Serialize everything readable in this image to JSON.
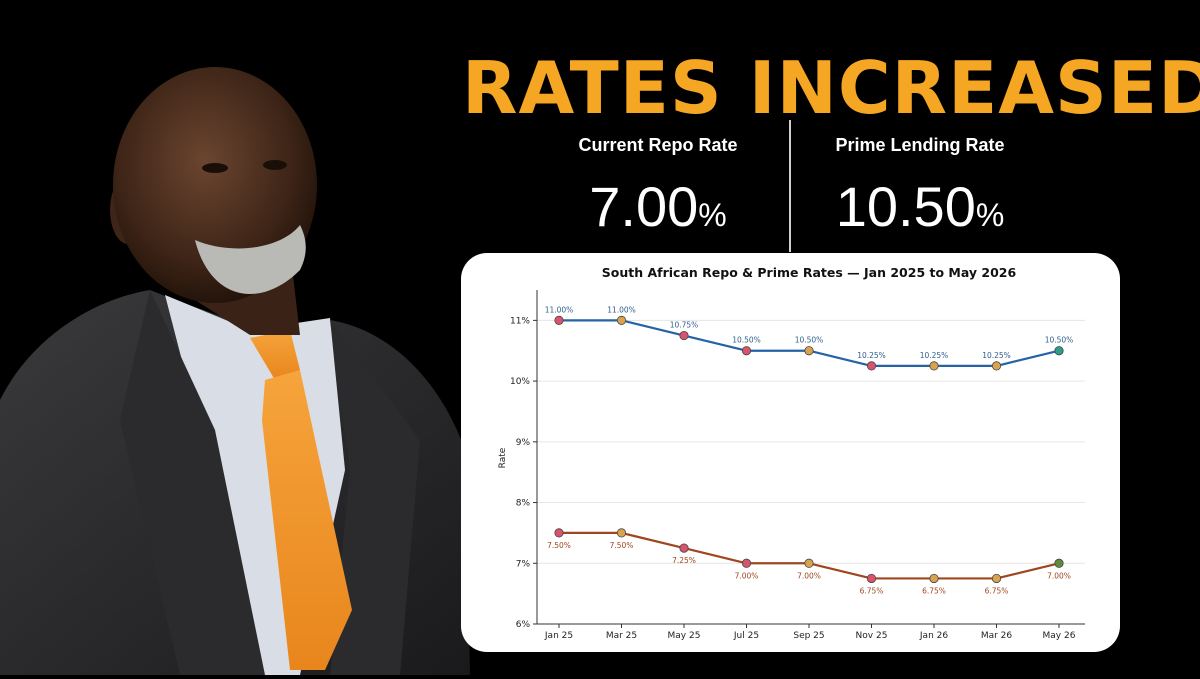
{
  "headline": "RATES INCREASED",
  "stats": {
    "repo": {
      "label": "Current Repo Rate",
      "value": "7.00",
      "unit": "%"
    },
    "prime": {
      "label": "Prime Lending Rate",
      "value": "10.50",
      "unit": "%"
    }
  },
  "colors": {
    "headline": "#F5A623",
    "prime_line": "#2563A6",
    "repo_line": "#A0461E",
    "prime_label": "#2E5E8C",
    "repo_label": "#A0461E"
  },
  "chart_data": {
    "type": "line",
    "title": "South African Repo & Prime Rates  —  Jan 2025 to May 2026",
    "xlabel": "",
    "ylabel": "Rate",
    "ylim": [
      6,
      11.5
    ],
    "yticks": [
      6,
      7,
      8,
      9,
      10,
      11
    ],
    "ytick_labels": [
      "6%",
      "7%",
      "8%",
      "9%",
      "10%",
      "11%"
    ],
    "grid": true,
    "categories": [
      "Jan 25",
      "Mar 25",
      "May 25",
      "Jul 25",
      "Sep 25",
      "Nov 25",
      "Jan 26",
      "Mar 26",
      "May 26"
    ],
    "series": [
      {
        "values": [
          11.0,
          11.0,
          10.75,
          10.5,
          10.5,
          10.25,
          10.25,
          10.25,
          10.5
        ],
        "labels": [
          "11.00%",
          "11.00%",
          "10.75%",
          "10.50%",
          "10.50%",
          "10.25%",
          "10.25%",
          "10.25%",
          "10.50%"
        ],
        "color": "#2563A6",
        "label_position": "above",
        "marker_colors": [
          "#D9536F",
          "#D9A24F",
          "#D9536F",
          "#D9536F",
          "#D9A24F",
          "#D9536F",
          "#D9A24F",
          "#D9A24F",
          "#2E9E8A"
        ]
      },
      {
        "values": [
          7.5,
          7.5,
          7.25,
          7.0,
          7.0,
          6.75,
          6.75,
          6.75,
          7.0
        ],
        "labels": [
          "7.50%",
          "7.50%",
          "7.25%",
          "7.00%",
          "7.00%",
          "6.75%",
          "6.75%",
          "6.75%",
          "7.00%"
        ],
        "color": "#A0461E",
        "label_position": "below",
        "marker_colors": [
          "#D9536F",
          "#D9A24F",
          "#D9536F",
          "#D9536F",
          "#D9A24F",
          "#D9536F",
          "#D9A24F",
          "#D9A24F",
          "#5E8C3A"
        ]
      }
    ]
  }
}
